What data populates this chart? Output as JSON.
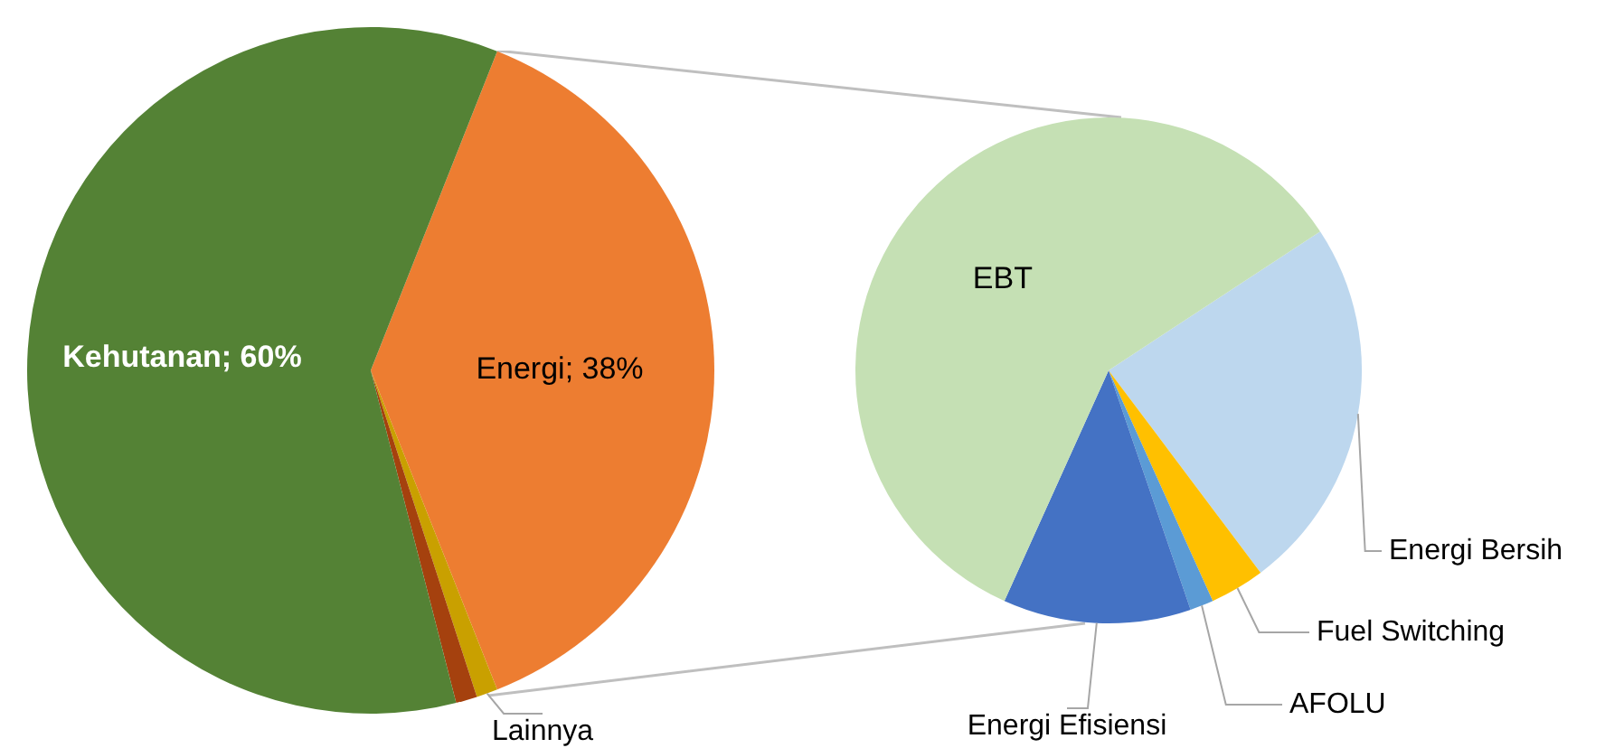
{
  "chart_data": [
    {
      "type": "pie",
      "categories": [
        "Energi",
        "Lainnya",
        null,
        "Kehutanan"
      ],
      "values": [
        38,
        1,
        1,
        60
      ],
      "colors": [
        "#ed7d31",
        "#c9a000",
        "#a5410e",
        "#548235"
      ],
      "value_labels": [
        "38%",
        null,
        null,
        "60%"
      ]
    },
    {
      "type": "pie",
      "categories": [
        "Energi Bersih",
        "Fuel Switching",
        "AFOLU",
        "Energi Efisiensi",
        "EBT"
      ],
      "values": [
        24,
        3.5,
        1.5,
        12,
        59
      ],
      "colors": [
        "#bdd7ee",
        "#ffc000",
        "#5b9bd5",
        "#4472c4",
        "#c5e0b4"
      ]
    }
  ]
}
